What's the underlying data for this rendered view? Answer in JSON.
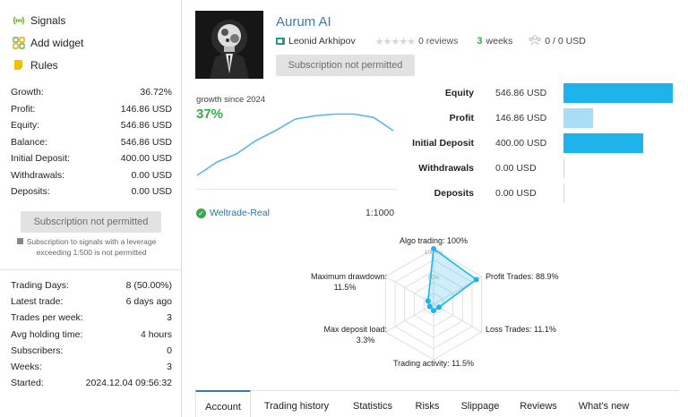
{
  "colors": {
    "accent": "#3b7ab3",
    "positive": "#3aa94d",
    "bar_strong": "#1eb3ea",
    "bar_light": "#a7def5"
  },
  "sidebar": {
    "nav": [
      {
        "label": "Signals",
        "icon": "signal-icon"
      },
      {
        "label": "Add widget",
        "icon": "widget-icon"
      },
      {
        "label": "Rules",
        "icon": "rules-icon"
      }
    ],
    "stats": [
      {
        "label": "Growth:",
        "value": "36.72%"
      },
      {
        "label": "Profit:",
        "value": "146.86 USD"
      },
      {
        "label": "Equity:",
        "value": "546.86 USD"
      },
      {
        "label": "Balance:",
        "value": "546.86 USD"
      },
      {
        "label": "Initial Deposit:",
        "value": "400.00 USD"
      },
      {
        "label": "Withdrawals:",
        "value": "0.00 USD"
      },
      {
        "label": "Deposits:",
        "value": "0.00 USD"
      }
    ],
    "subscription_button": "Subscription not permitted",
    "subscription_note": "Subscription to signals with a leverage exceeding 1:500 is not permitted",
    "stats2": [
      {
        "label": "Trading Days:",
        "value": "8 (50.00%)"
      },
      {
        "label": "Latest trade:",
        "value": "6 days ago"
      },
      {
        "label": "Trades per week:",
        "value": "3"
      },
      {
        "label": "Avg holding time:",
        "value": "4 hours"
      },
      {
        "label": "Subscribers:",
        "value": "0"
      },
      {
        "label": "Weeks:",
        "value": "3"
      },
      {
        "label": "Started:",
        "value": "2024.12.04 09:56:32"
      }
    ]
  },
  "header": {
    "title": "Aurum AI",
    "author": "Leonid Arkhipov",
    "stars": "★★★★★",
    "rating": 0,
    "reviews": "0 reviews",
    "weeks_num": "3",
    "weeks_label": "weeks",
    "subscribers": "0 / 0 USD",
    "subscription_button": "Subscription not permitted"
  },
  "growth": {
    "label": "growth since 2024",
    "value": "37%"
  },
  "broker": {
    "name": "Weltrade-Real",
    "leverage": "1:1000"
  },
  "bars": [
    {
      "label": "Equity",
      "value": "546.86 USD",
      "amount": 546.86,
      "tone": "strong"
    },
    {
      "label": "Profit",
      "value": "146.86 USD",
      "amount": 146.86,
      "tone": "light"
    },
    {
      "label": "Initial Deposit",
      "value": "400.00 USD",
      "amount": 400.0,
      "tone": "strong"
    },
    {
      "label": "Withdrawals",
      "value": "0.00 USD",
      "amount": 0,
      "tone": "strong"
    },
    {
      "label": "Deposits",
      "value": "0.00 USD",
      "amount": 0,
      "tone": "strong"
    }
  ],
  "radar": {
    "axes": [
      {
        "label": "Algo trading: 100%",
        "value": 100
      },
      {
        "label": "Profit Trades: 88.9%",
        "value": 88.9
      },
      {
        "label": "Loss Trades: 11.1%",
        "value": 11.1
      },
      {
        "label": "Trading activity: 11.5%",
        "value": 11.5
      },
      {
        "label": "Max deposit load:",
        "label2": "3.3%",
        "value": 3.3
      },
      {
        "label": "Maximum drawdown:",
        "label2": "11.5%",
        "value": 11.5
      }
    ],
    "ring_labels": [
      "100+%",
      "50%"
    ]
  },
  "tabs": [
    "Account",
    "Trading history",
    "Statistics",
    "Risks",
    "Slippage",
    "Reviews",
    "What's new"
  ],
  "active_tab": "Account",
  "chart_data": {
    "type": "line",
    "title": "growth since 2024",
    "x": [
      0,
      1,
      2,
      3,
      4,
      5,
      6,
      7,
      8,
      9,
      10
    ],
    "values": [
      0,
      8,
      13,
      21,
      27,
      34,
      36,
      37,
      37,
      35,
      27
    ],
    "xlabel": "",
    "ylabel": "",
    "ylim": [
      0,
      40
    ],
    "grid": false,
    "legend": "none"
  }
}
